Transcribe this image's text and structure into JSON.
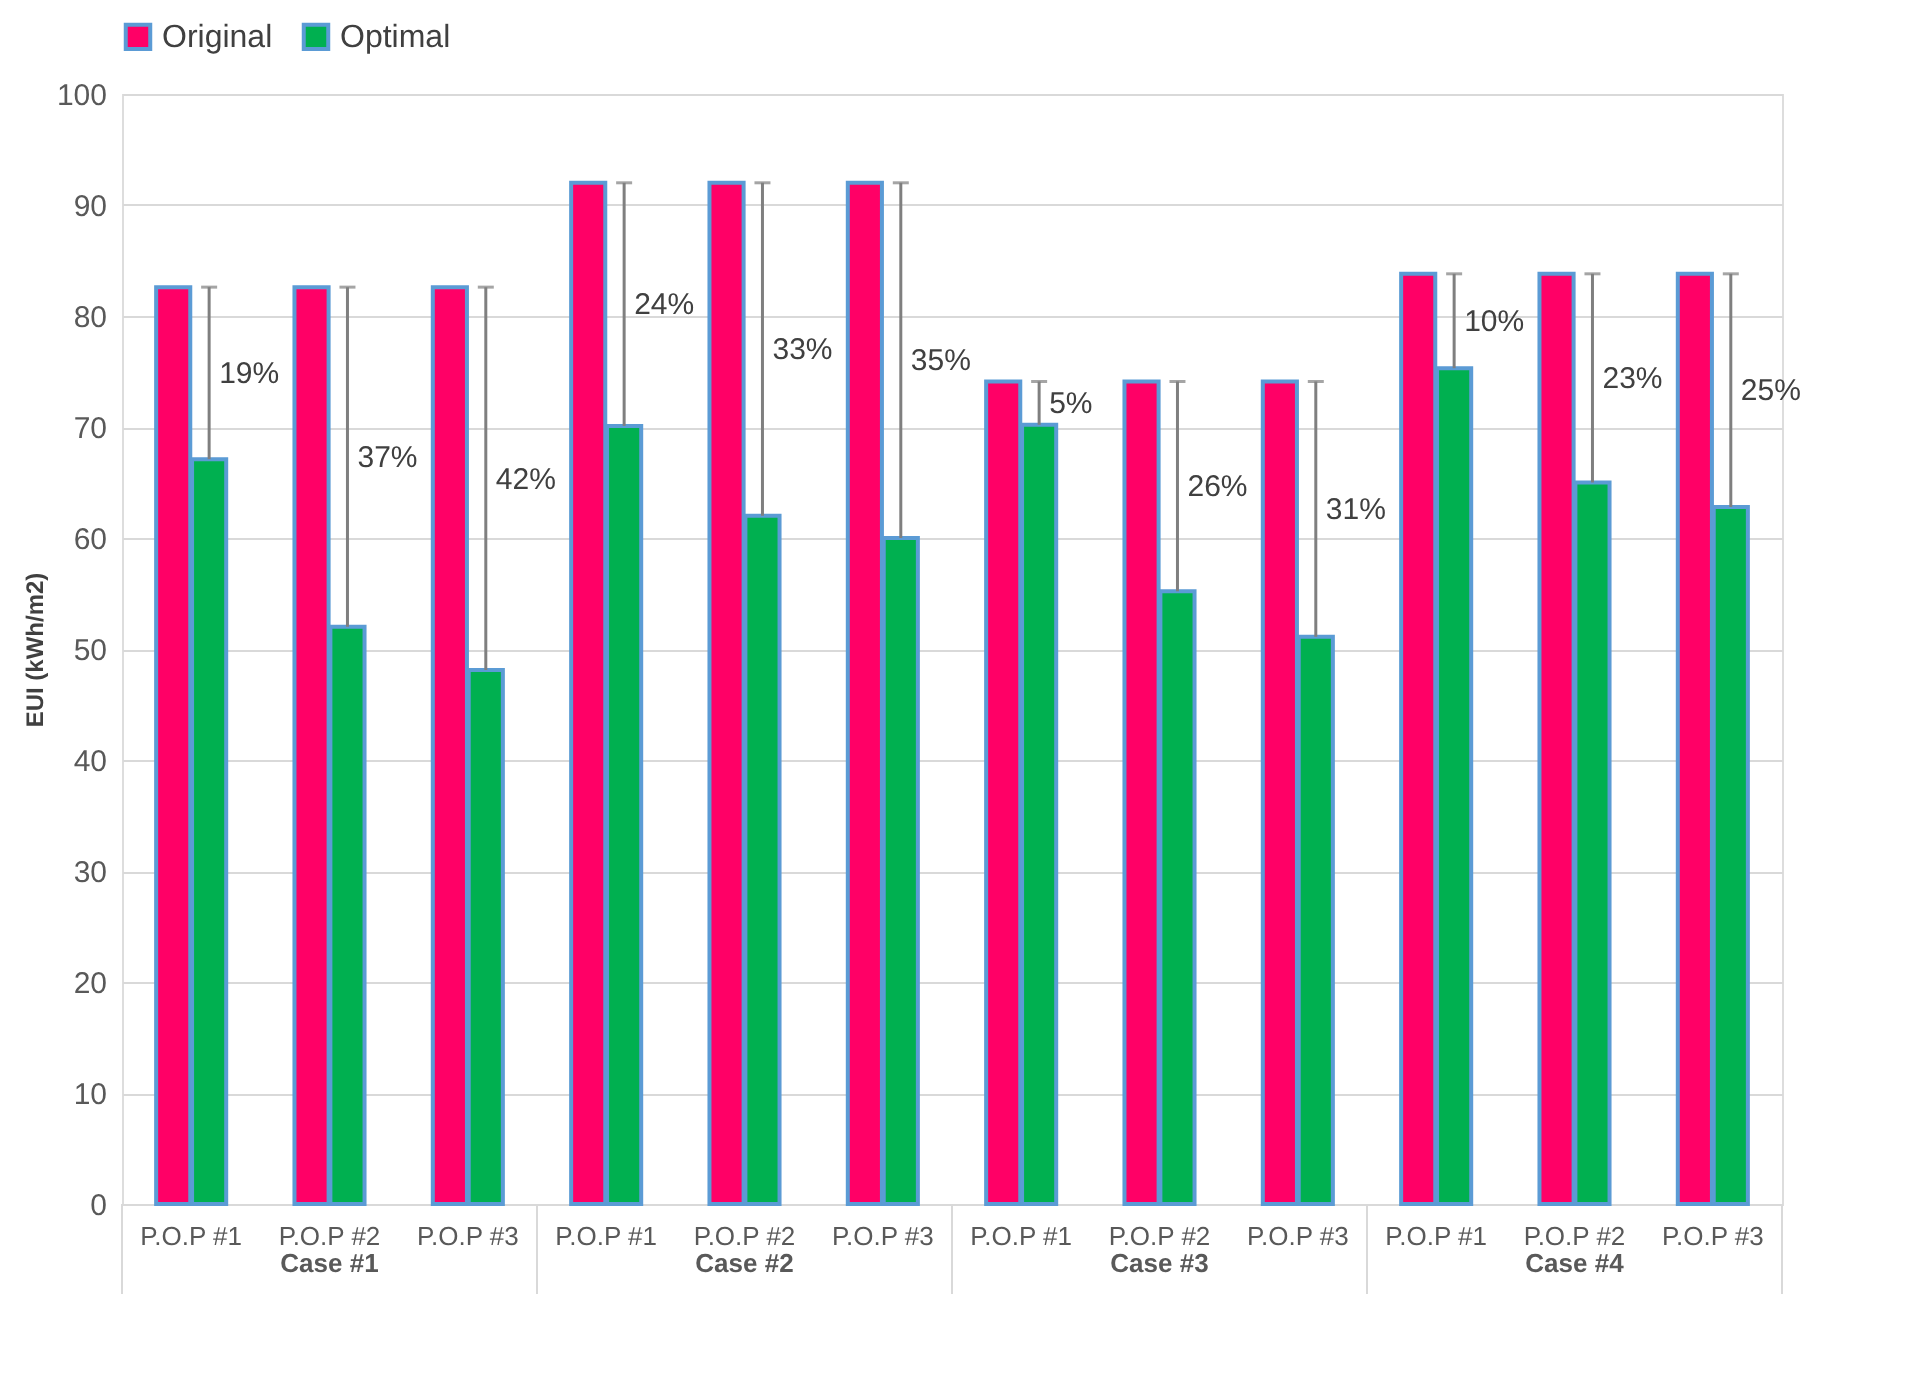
{
  "chart_data": {
    "type": "bar",
    "ylabel": "EUI (kWh/m2)",
    "categories": [
      "P.O.P #1",
      "P.O.P #2",
      "P.O.P #3",
      "P.O.P #1",
      "P.O.P #2",
      "P.O.P #3",
      "P.O.P #1",
      "P.O.P #2",
      "P.O.P #3",
      "P.O.P #1",
      "P.O.P #2",
      "P.O.P #3"
    ],
    "annotations": [
      "19%",
      "37%",
      "42%",
      "24%",
      "33%",
      "35%",
      "5%",
      "26%",
      "31%",
      "10%",
      "23%",
      "25%",
      "Case #1",
      "Case #2",
      "Case #3",
      "Case #4"
    ],
    "series": [
      {
        "name": "Original",
        "color": "#ff0066",
        "values": [
          82.6,
          82.6,
          82.6,
          92.0,
          92.0,
          92.0,
          74.1,
          74.1,
          74.1,
          83.8,
          83.8,
          83.8
        ]
      },
      {
        "name": "Optimal",
        "color": "#00b050",
        "values": [
          67.1,
          52.0,
          48.1,
          70.1,
          62.0,
          60.0,
          70.2,
          55.2,
          51.1,
          75.3,
          65.0,
          62.8
        ],
        "errors": [
          [
            67.1,
            82.6
          ],
          [
            52.0,
            82.6
          ],
          [
            48.1,
            82.6
          ],
          [
            70.1,
            92.0
          ],
          [
            62.0,
            92.0
          ],
          [
            60.0,
            92.0
          ],
          [
            70.2,
            74.1
          ],
          [
            55.2,
            74.1
          ],
          [
            51.1,
            74.1
          ],
          [
            75.3,
            83.8
          ],
          [
            65.0,
            83.8
          ],
          [
            62.8,
            83.8
          ]
        ]
      }
    ],
    "ylim": [
      0,
      100
    ],
    "yticks": [
      0,
      10,
      20,
      30,
      40,
      50,
      60,
      70,
      80,
      90,
      100
    ],
    "grid": "y",
    "legend": "top"
  }
}
